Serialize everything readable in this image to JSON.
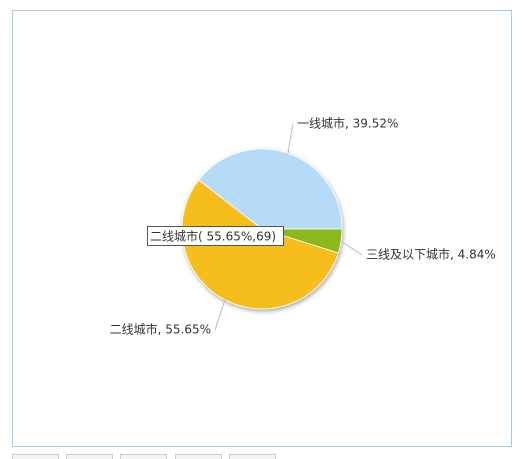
{
  "chart_data": {
    "type": "pie",
    "labels": [
      "一线城市, 39.52%",
      "三线及以下城市, 4.84%",
      "二线城市, 55.65%"
    ],
    "values": [
      39.52,
      4.84,
      55.65
    ],
    "colors": [
      "#b5dbf8",
      "#8cb81a",
      "#f6be1c"
    ],
    "tooltip": "二线城市( 55.65%,69)"
  }
}
